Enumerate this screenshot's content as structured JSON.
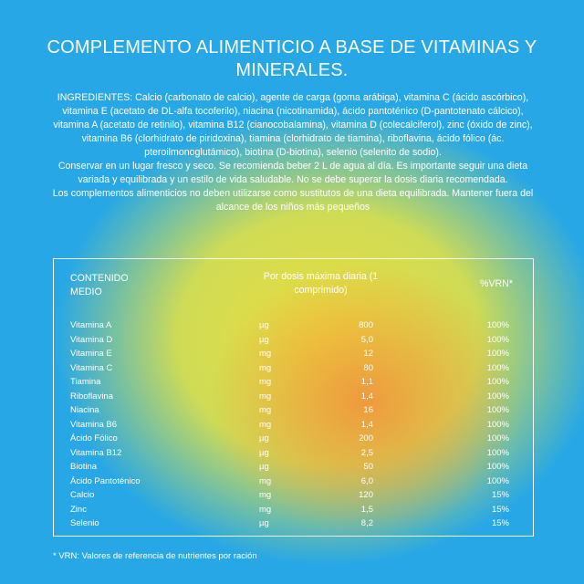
{
  "header": {
    "title": "COMPLEMENTO ALIMENTICIO A BASE DE VITAMINAS Y MINERALES."
  },
  "paragraphs": [
    "INGREDIENTES: Calcio (carbonato de calcio), agente de carga (goma arábiga), vitamina C (ácido ascórbico), vitamina E (acetato de DL-alfa tocoferilo), niacina (nicotinamida), ácido pantoténico (D-pantotenato cálcico), vitamina A (acetato de retinilo), vitamina B12 (cianocobalamina), vitamina D (colecalciferol), zinc (óxido de zinc), vitamina B6 (clorhidrato de piridoxina), tiamina (clorhidrato de tiamina), riboflavina, ácido fólico (ác. pteroilmonoglutámico), biotina (D-biotina), selenio (selenito de sodio).",
    "Conservar en un lugar fresco y seco. Se recomienda beber 2 L de agua al día. Es importante seguir una dieta variada y equilibrada y un estilo de vida saludable. No se debe superar la dosis diaria recomendada.",
    "Los complementos alimenticios no deben utilizarse como sustitutos de una dieta equilibrada. Mantener fuera del alcance de los niños más pequeños"
  ],
  "table": {
    "headers": [
      "CONTENIDO MEDIO",
      "Por dosis máxima diaria (1 comprimido)",
      "%VRN*"
    ],
    "rows": [
      [
        "Vitamina A",
        "µg",
        "800",
        "100%"
      ],
      [
        "Vitamina D",
        "µg",
        "5,0",
        "100%"
      ],
      [
        "Vitamina E",
        "mg",
        "12",
        "100%"
      ],
      [
        "Vitamina C",
        "mg",
        "80",
        "100%"
      ],
      [
        "Tiamina",
        "mg",
        "1,1",
        "100%"
      ],
      [
        "Riboflavina",
        "mg",
        "1,4",
        "100%"
      ],
      [
        "Niacina",
        "mg",
        "16",
        "100%"
      ],
      [
        "Vitamina B6",
        "mg",
        "1,4",
        "100%"
      ],
      [
        "Ácido Fólico",
        "µg",
        "200",
        "100%"
      ],
      [
        "Vitamina B12",
        "µg",
        "2,5",
        "100%"
      ],
      [
        "Biotina",
        "µg",
        "50",
        "100%"
      ],
      [
        "Ácido Pantoténico",
        "mg",
        "6,0",
        "100%"
      ],
      [
        "Calcio",
        "mg",
        "120",
        "15%"
      ],
      [
        "Zinc",
        "mg",
        "1,5",
        "15%"
      ],
      [
        "Selenio",
        "µg",
        "8,2",
        "15%"
      ]
    ]
  },
  "footnote": "* VRN: Valores de referencia de nutrientes por ración"
}
